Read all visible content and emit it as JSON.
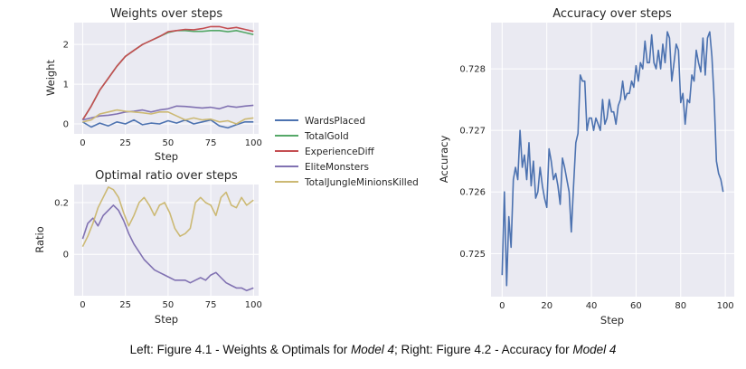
{
  "caption": {
    "left_prefix": "Left: Figure 4.1 - Weights & Optimals for ",
    "left_model": "Model 4",
    "right_prefix": "; Right: Figure 4.2 - Accuracy for ",
    "right_model": "Model 4"
  },
  "chart_data": [
    {
      "id": "weights",
      "type": "line",
      "title": "Weights over steps",
      "xlabel": "Step",
      "ylabel": "Weight",
      "xlim": [
        -5,
        103
      ],
      "ylim": [
        -0.25,
        2.55
      ],
      "xticks": [
        0,
        25,
        50,
        75,
        100
      ],
      "yticks": [
        0,
        1,
        2
      ],
      "grid": true,
      "legend": "outside-right",
      "series": [
        {
          "name": "WardsPlaced",
          "color": "#4c72b0",
          "x": [
            0,
            5,
            10,
            15,
            20,
            25,
            30,
            35,
            40,
            45,
            50,
            55,
            60,
            65,
            70,
            75,
            80,
            85,
            90,
            95,
            100
          ],
          "y": [
            0.05,
            -0.08,
            0.02,
            -0.05,
            0.05,
            0.0,
            0.1,
            -0.02,
            0.02,
            0.0,
            0.08,
            0.02,
            0.1,
            0.0,
            0.05,
            0.1,
            -0.05,
            -0.1,
            -0.02,
            0.05,
            0.05
          ]
        },
        {
          "name": "TotalGold",
          "color": "#55a868",
          "x": [
            0,
            5,
            10,
            15,
            20,
            25,
            30,
            35,
            40,
            45,
            50,
            55,
            60,
            65,
            70,
            75,
            80,
            85,
            90,
            95,
            100
          ],
          "y": [
            0.1,
            0.45,
            0.85,
            1.15,
            1.45,
            1.7,
            1.85,
            2.0,
            2.1,
            2.2,
            2.3,
            2.35,
            2.35,
            2.33,
            2.33,
            2.35,
            2.35,
            2.32,
            2.35,
            2.3,
            2.25
          ]
        },
        {
          "name": "ExperienceDiff",
          "color": "#c44e52",
          "x": [
            0,
            5,
            10,
            15,
            20,
            25,
            30,
            35,
            40,
            45,
            50,
            55,
            60,
            65,
            70,
            75,
            80,
            85,
            90,
            95,
            100
          ],
          "y": [
            0.1,
            0.45,
            0.85,
            1.15,
            1.45,
            1.7,
            1.85,
            2.0,
            2.1,
            2.2,
            2.32,
            2.35,
            2.38,
            2.37,
            2.4,
            2.45,
            2.45,
            2.4,
            2.43,
            2.38,
            2.33
          ]
        },
        {
          "name": "EliteMonsters",
          "color": "#8172b2",
          "x": [
            0,
            5,
            10,
            15,
            20,
            25,
            30,
            35,
            40,
            45,
            50,
            55,
            60,
            65,
            70,
            75,
            80,
            85,
            90,
            95,
            100
          ],
          "y": [
            0.1,
            0.15,
            0.2,
            0.22,
            0.25,
            0.3,
            0.32,
            0.35,
            0.3,
            0.35,
            0.38,
            0.45,
            0.44,
            0.42,
            0.4,
            0.42,
            0.38,
            0.45,
            0.42,
            0.45,
            0.47
          ]
        },
        {
          "name": "TotalJungleMinionsKilled",
          "color": "#ccb974",
          "x": [
            0,
            5,
            10,
            15,
            20,
            25,
            30,
            35,
            40,
            45,
            50,
            55,
            60,
            65,
            70,
            75,
            80,
            85,
            90,
            95,
            100
          ],
          "y": [
            0.05,
            0.1,
            0.25,
            0.3,
            0.35,
            0.32,
            0.3,
            0.28,
            0.25,
            0.3,
            0.3,
            0.2,
            0.1,
            0.15,
            0.1,
            0.12,
            0.05,
            0.08,
            0.0,
            0.12,
            0.15
          ]
        }
      ]
    },
    {
      "id": "ratio",
      "type": "line",
      "title": "Optimal ratio over steps",
      "xlabel": "Step",
      "ylabel": "Ratio",
      "xlim": [
        -5,
        103
      ],
      "ylim": [
        -0.16,
        0.27
      ],
      "xticks": [
        0,
        25,
        50,
        75,
        100
      ],
      "yticks": [
        0.0,
        0.2
      ],
      "grid": true,
      "series": [
        {
          "color": "#8172b2",
          "x": [
            0,
            3,
            6,
            9,
            12,
            15,
            18,
            21,
            24,
            27,
            30,
            33,
            36,
            39,
            42,
            45,
            48,
            51,
            54,
            57,
            60,
            63,
            66,
            69,
            72,
            75,
            78,
            81,
            84,
            87,
            90,
            93,
            96,
            100
          ],
          "y": [
            0.06,
            0.12,
            0.14,
            0.11,
            0.15,
            0.17,
            0.19,
            0.17,
            0.13,
            0.08,
            0.04,
            0.01,
            -0.02,
            -0.04,
            -0.06,
            -0.07,
            -0.08,
            -0.09,
            -0.1,
            -0.1,
            -0.1,
            -0.11,
            -0.1,
            -0.09,
            -0.1,
            -0.08,
            -0.07,
            -0.09,
            -0.11,
            -0.12,
            -0.13,
            -0.13,
            -0.14,
            -0.13
          ]
        },
        {
          "color": "#ccb974",
          "x": [
            0,
            3,
            6,
            9,
            12,
            15,
            18,
            21,
            24,
            27,
            30,
            33,
            36,
            39,
            42,
            45,
            48,
            51,
            54,
            57,
            60,
            63,
            66,
            69,
            72,
            75,
            78,
            81,
            84,
            87,
            90,
            93,
            96,
            100
          ],
          "y": [
            0.03,
            0.07,
            0.12,
            0.18,
            0.22,
            0.26,
            0.25,
            0.22,
            0.16,
            0.11,
            0.15,
            0.2,
            0.22,
            0.19,
            0.15,
            0.19,
            0.2,
            0.16,
            0.1,
            0.07,
            0.08,
            0.1,
            0.2,
            0.22,
            0.2,
            0.19,
            0.15,
            0.22,
            0.24,
            0.19,
            0.18,
            0.22,
            0.19,
            0.21
          ]
        }
      ]
    },
    {
      "id": "accuracy",
      "type": "line",
      "title": "Accuracy over steps",
      "xlabel": "Step",
      "ylabel": "Accuracy",
      "xlim": [
        -5,
        104
      ],
      "ylim": [
        0.7243,
        0.72875
      ],
      "xticks": [
        0,
        20,
        40,
        60,
        80,
        100
      ],
      "yticks": [
        0.725,
        0.726,
        0.727,
        0.728
      ],
      "grid": true,
      "series": [
        {
          "color": "#4c72b0",
          "x": [
            0,
            1,
            2,
            3,
            4,
            5,
            6,
            7,
            8,
            9,
            10,
            11,
            12,
            13,
            14,
            15,
            16,
            17,
            18,
            19,
            20,
            21,
            22,
            23,
            24,
            25,
            26,
            27,
            28,
            29,
            30,
            31,
            32,
            33,
            34,
            35,
            36,
            37,
            38,
            39,
            40,
            41,
            42,
            43,
            44,
            45,
            46,
            47,
            48,
            49,
            50,
            51,
            52,
            53,
            54,
            55,
            56,
            57,
            58,
            59,
            60,
            61,
            62,
            63,
            64,
            65,
            66,
            67,
            68,
            69,
            70,
            71,
            72,
            73,
            74,
            75,
            76,
            77,
            78,
            79,
            80,
            81,
            82,
            83,
            84,
            85,
            86,
            87,
            88,
            89,
            90,
            91,
            92,
            93,
            94,
            95,
            96,
            97,
            98,
            99
          ],
          "y": [
            0.72465,
            0.726,
            0.72448,
            0.7256,
            0.7251,
            0.7262,
            0.7264,
            0.7262,
            0.727,
            0.7264,
            0.7266,
            0.7262,
            0.7268,
            0.7261,
            0.7265,
            0.7259,
            0.726,
            0.7264,
            0.7261,
            0.7259,
            0.72575,
            0.7267,
            0.7265,
            0.7262,
            0.7263,
            0.7261,
            0.7258,
            0.72655,
            0.7264,
            0.7262,
            0.726,
            0.72535,
            0.7261,
            0.7268,
            0.72695,
            0.7279,
            0.7278,
            0.7278,
            0.727,
            0.7272,
            0.7272,
            0.727,
            0.7272,
            0.7271,
            0.727,
            0.7275,
            0.7271,
            0.7272,
            0.7275,
            0.7273,
            0.7273,
            0.7271,
            0.7274,
            0.7275,
            0.7278,
            0.7275,
            0.7276,
            0.7276,
            0.7278,
            0.7277,
            0.72805,
            0.7278,
            0.7281,
            0.728,
            0.72845,
            0.7281,
            0.7281,
            0.72855,
            0.7281,
            0.728,
            0.7283,
            0.728,
            0.7284,
            0.7281,
            0.7286,
            0.7285,
            0.7278,
            0.7281,
            0.7284,
            0.7283,
            0.72745,
            0.7276,
            0.7271,
            0.7275,
            0.72745,
            0.7279,
            0.7278,
            0.7283,
            0.7281,
            0.72795,
            0.7285,
            0.7279,
            0.7285,
            0.7286,
            0.7282,
            0.7275,
            0.7265,
            0.7263,
            0.7262,
            0.726
          ]
        }
      ]
    }
  ]
}
